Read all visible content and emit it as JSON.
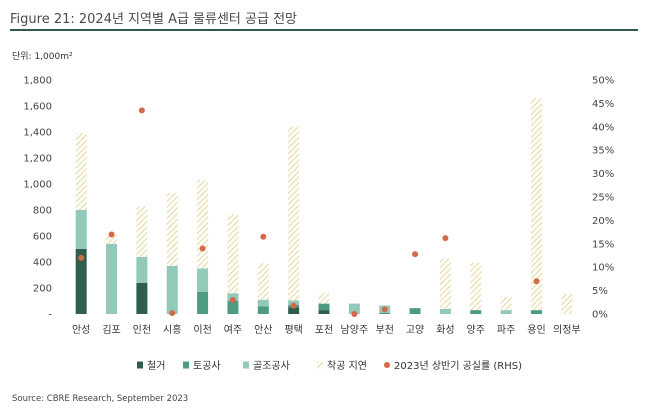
{
  "header": {
    "title": "Figure 21: 2024년 지역별 A급 물류센터 공급 전망",
    "unit": "단위: 1,000m²"
  },
  "footer": {
    "source": "Source: CBRE Research, September 2023"
  },
  "colors": {
    "rail": "#2f5f4c",
    "land": "#4e9b84",
    "skel": "#92c9b8",
    "delay_hatch": "#e3d79a",
    "rhs_dot": "#d4694a",
    "title_rule": "#2f5a4a"
  },
  "chart_data": {
    "type": "bar",
    "stacked": true,
    "categories": [
      "안성",
      "김포",
      "인천",
      "시흥",
      "이천",
      "여주",
      "안산",
      "평택",
      "포천",
      "남양주",
      "부천",
      "고양",
      "화성",
      "양주",
      "파주",
      "용인",
      "의정부"
    ],
    "series": [
      {
        "name": "철거",
        "color": "#2f5f4c",
        "values": [
          500,
          0,
          240,
          0,
          0,
          0,
          0,
          50,
          30,
          0,
          0,
          0,
          0,
          0,
          0,
          0,
          0
        ]
      },
      {
        "name": "토공사",
        "color": "#4e9b84",
        "values": [
          0,
          0,
          0,
          0,
          170,
          100,
          60,
          20,
          50,
          0,
          10,
          45,
          0,
          30,
          0,
          30,
          0
        ]
      },
      {
        "name": "골조공사",
        "color": "#92c9b8",
        "values": [
          300,
          540,
          200,
          370,
          180,
          60,
          50,
          35,
          0,
          80,
          55,
          0,
          40,
          0,
          30,
          0,
          0
        ]
      },
      {
        "name": "착공 지연",
        "color": "#e3d79a",
        "pattern": "hatch",
        "values": [
          590,
          70,
          390,
          560,
          680,
          610,
          280,
          1335,
          80,
          0,
          0,
          0,
          385,
          365,
          100,
          1630,
          150
        ]
      }
    ],
    "rhs_series": {
      "name": "2023년 상반기 공실률 (RHS)",
      "color": "#d4694a",
      "values": [
        12.0,
        17.0,
        43.5,
        0.2,
        14.0,
        3.0,
        16.5,
        1.8,
        null,
        0.0,
        1.0,
        12.8,
        16.2,
        null,
        null,
        7.0,
        null
      ]
    },
    "ylim": [
      0,
      1800
    ],
    "yticks": [
      0,
      200,
      400,
      600,
      800,
      1000,
      1200,
      1400,
      1600,
      1800
    ],
    "ytick_labels": [
      "-",
      "200",
      "400",
      "600",
      "800",
      "1,000",
      "1,200",
      "1,400",
      "1,600",
      "1,800"
    ],
    "y2lim": [
      0,
      50
    ],
    "y2ticks": [
      0,
      5,
      10,
      15,
      20,
      25,
      30,
      35,
      40,
      45,
      50
    ],
    "y2tick_labels": [
      "0%",
      "5%",
      "10%",
      "15%",
      "20%",
      "25%",
      "30%",
      "35%",
      "40%",
      "45%",
      "50%"
    ],
    "grid": false,
    "legend_position": "bottom",
    "title": "",
    "xlabel": "",
    "ylabel": ""
  }
}
